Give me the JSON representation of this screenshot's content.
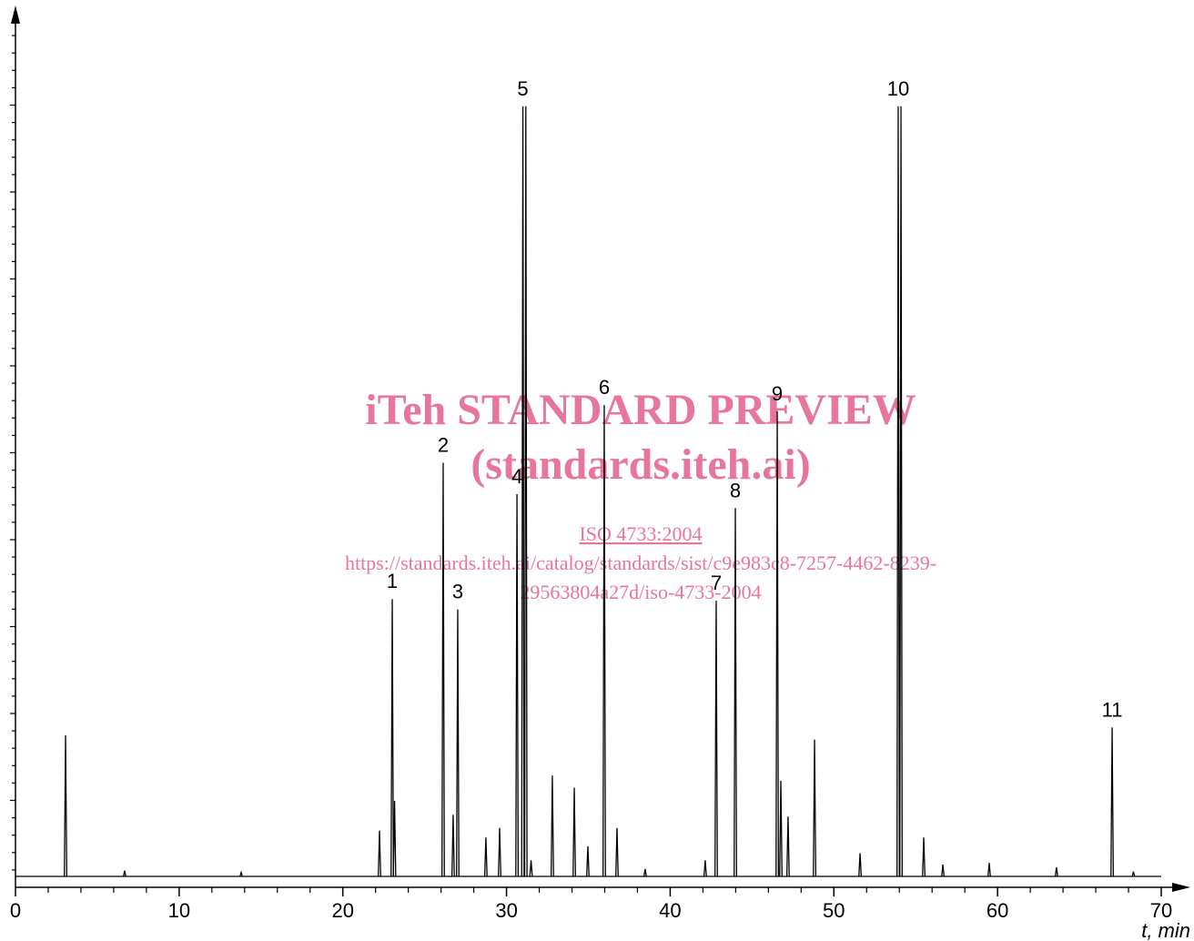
{
  "chart_data": {
    "type": "chromatogram",
    "xlabel": "t, min",
    "x": [
      3.06,
      6.67,
      13.79,
      22.24,
      23.02,
      23.16,
      26.13,
      26.74,
      27.02,
      28.74,
      29.58,
      30.64,
      31.0,
      31.18,
      31.5,
      32.8,
      34.14,
      34.97,
      35.97,
      36.75,
      38.47,
      42.14,
      42.81,
      43.98,
      46.54,
      46.76,
      47.2,
      48.82,
      51.6,
      53.93,
      54.1,
      55.49,
      56.66,
      59.49,
      63.6,
      67.0,
      68.3
    ],
    "values": [
      17.4,
      1.9,
      1.7,
      6.5,
      33.0,
      9.9,
      48.6,
      8.3,
      31.8,
      5.7,
      6.8,
      45.0,
      89.4,
      89.4,
      3.1,
      12.8,
      11.4,
      4.7,
      55.2,
      6.8,
      2.1,
      3.1,
      32.8,
      43.4,
      54.5,
      12.2,
      8.1,
      16.9,
      3.9,
      89.4,
      89.4,
      5.7,
      2.6,
      2.8,
      2.3,
      18.3,
      1.8
    ],
    "peak_labels": [
      null,
      null,
      null,
      null,
      "1",
      null,
      "2",
      null,
      "3",
      null,
      null,
      "4",
      "5",
      null,
      null,
      null,
      null,
      null,
      "6",
      null,
      null,
      null,
      "7",
      "8",
      "9",
      null,
      null,
      null,
      null,
      "10",
      null,
      null,
      null,
      null,
      null,
      "11",
      null
    ],
    "baseline": 1.25,
    "color": "#000000",
    "xlim": [
      0,
      70
    ],
    "xticks": [
      0,
      10,
      20,
      30,
      40,
      50,
      60,
      70
    ],
    "ylim": [
      0,
      100
    ]
  },
  "watermark": [
    "iTeh STANDARD PREVIEW",
    "(standards.iteh.ai)",
    "ISO 4733:2004",
    "https://standards.iteh.ai/catalog/standards/sist/c9e983c8-7257-4462-8239-",
    "29563804a27d/iso-4733-2004"
  ]
}
